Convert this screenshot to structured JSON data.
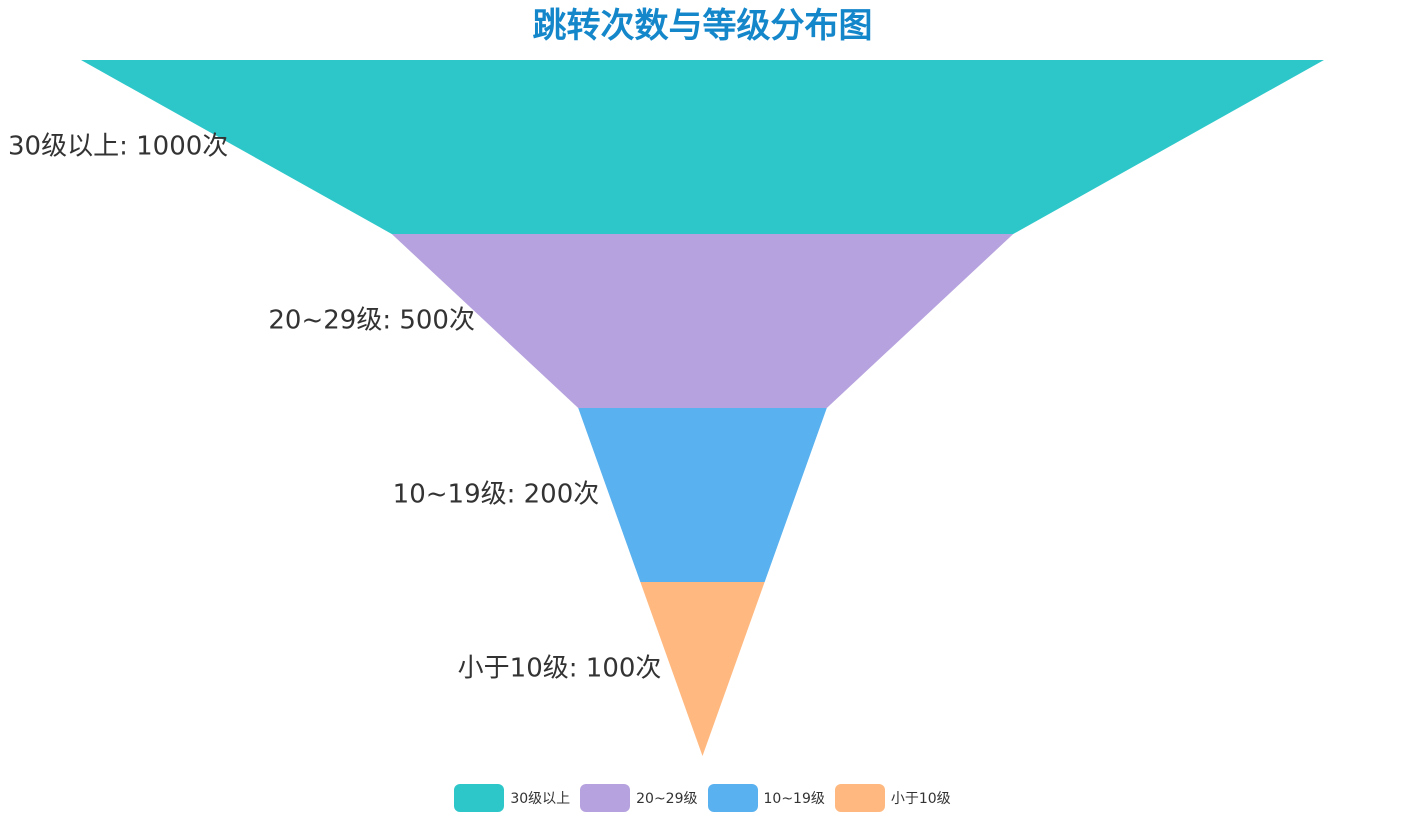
{
  "chart_data": {
    "type": "funnel",
    "title": "跳转次数与等级分布图",
    "categories": [
      "30级以上",
      "20~29级",
      "10~19级",
      "小于10级"
    ],
    "values": [
      1000,
      500,
      200,
      100
    ],
    "labels": [
      "30级以上: 1000次",
      "20~29级: 500次",
      "10~19级: 200次",
      "小于10级: 100次"
    ],
    "colors": [
      "#2ec7c9",
      "#b6a2de",
      "#5ab1ef",
      "#ffb980"
    ],
    "sort": "descending",
    "label_position": "left",
    "legend_position": "bottom-center"
  }
}
